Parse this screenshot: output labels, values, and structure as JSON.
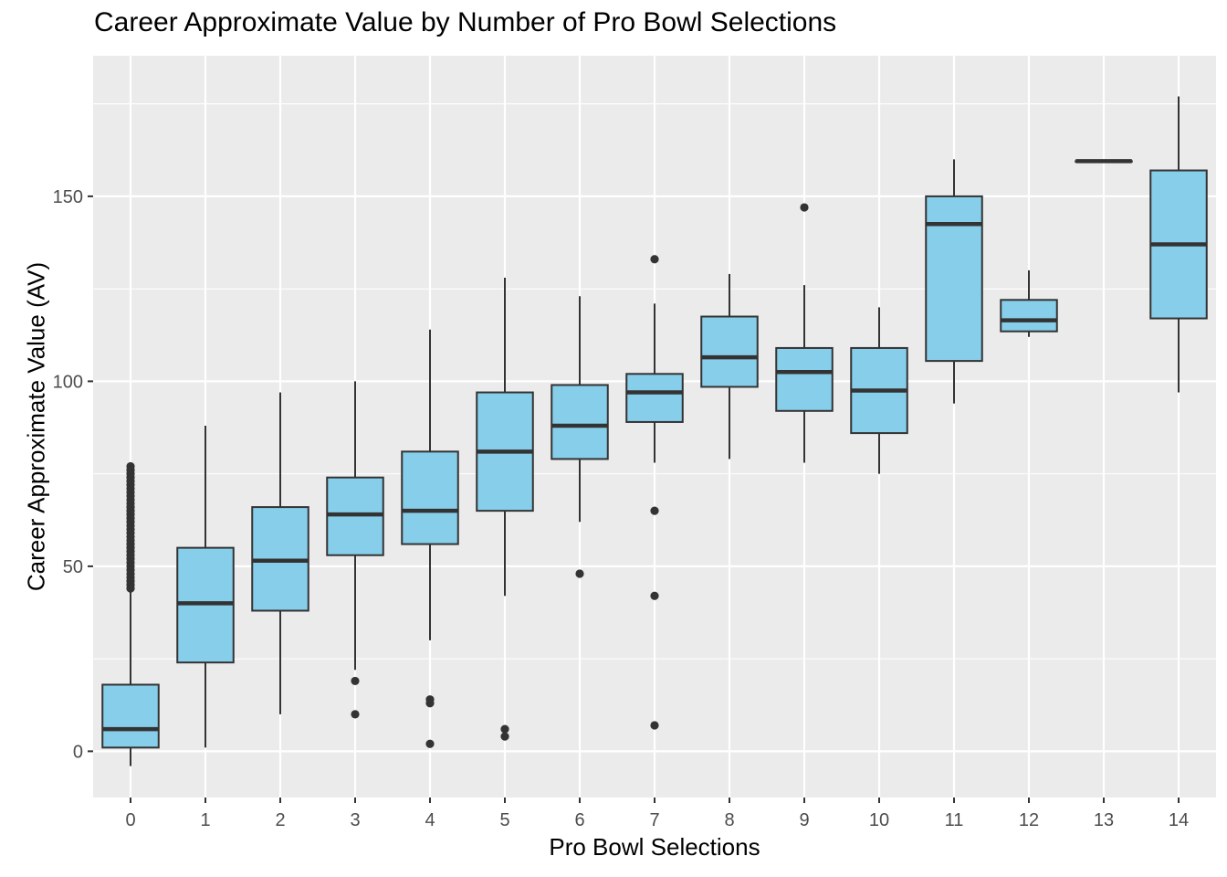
{
  "chart_data": {
    "type": "box",
    "title": "Career Approximate Value by Number of Pro Bowl Selections",
    "xlabel": "Pro Bowl Selections",
    "ylabel": "Career Approximate Value (AV)",
    "ylim": [
      -12.5,
      188
    ],
    "yticks": [
      0,
      50,
      100,
      150
    ],
    "categories": [
      "0",
      "1",
      "2",
      "3",
      "4",
      "5",
      "6",
      "7",
      "8",
      "9",
      "10",
      "11",
      "12",
      "13",
      "14"
    ],
    "boxes": [
      {
        "x": "0",
        "lower_whisker": -4,
        "q1": 1,
        "median": 6,
        "q3": 18,
        "upper_whisker": 44,
        "outliers": [
          44,
          45,
          46,
          47,
          48,
          49,
          50,
          51,
          52,
          53,
          54,
          55,
          56,
          57,
          58,
          59,
          60,
          61,
          62,
          63,
          64,
          65,
          66,
          67,
          68,
          69,
          70,
          71,
          72,
          73,
          74,
          75,
          76,
          77
        ]
      },
      {
        "x": "1",
        "lower_whisker": 1,
        "q1": 24,
        "median": 40,
        "q3": 55,
        "upper_whisker": 88,
        "outliers": []
      },
      {
        "x": "2",
        "lower_whisker": 10,
        "q1": 38,
        "median": 51.5,
        "q3": 66,
        "upper_whisker": 97,
        "outliers": []
      },
      {
        "x": "3",
        "lower_whisker": 22,
        "q1": 53,
        "median": 64,
        "q3": 74,
        "upper_whisker": 100,
        "outliers": [
          10,
          19
        ]
      },
      {
        "x": "4",
        "lower_whisker": 30,
        "q1": 56,
        "median": 65,
        "q3": 81,
        "upper_whisker": 114,
        "outliers": [
          2,
          13,
          14
        ]
      },
      {
        "x": "5",
        "lower_whisker": 42,
        "q1": 65,
        "median": 81,
        "q3": 97,
        "upper_whisker": 128,
        "outliers": [
          4,
          6
        ]
      },
      {
        "x": "6",
        "lower_whisker": 62,
        "q1": 79,
        "median": 88,
        "q3": 99,
        "upper_whisker": 123,
        "outliers": [
          48
        ]
      },
      {
        "x": "7",
        "lower_whisker": 78,
        "q1": 89,
        "median": 97,
        "q3": 102,
        "upper_whisker": 121,
        "outliers": [
          7,
          42,
          65,
          133
        ]
      },
      {
        "x": "8",
        "lower_whisker": 79,
        "q1": 98.5,
        "median": 106.5,
        "q3": 117.5,
        "upper_whisker": 129,
        "outliers": []
      },
      {
        "x": "9",
        "lower_whisker": 78,
        "q1": 92,
        "median": 102.5,
        "q3": 109,
        "upper_whisker": 126,
        "outliers": [
          147
        ]
      },
      {
        "x": "10",
        "lower_whisker": 75,
        "q1": 86,
        "median": 97.5,
        "q3": 109,
        "upper_whisker": 120,
        "outliers": []
      },
      {
        "x": "11",
        "lower_whisker": 94,
        "q1": 105.5,
        "median": 142.5,
        "q3": 150,
        "upper_whisker": 160,
        "outliers": []
      },
      {
        "x": "12",
        "lower_whisker": 112,
        "q1": 113.5,
        "median": 116.5,
        "q3": 122,
        "upper_whisker": 130,
        "outliers": []
      },
      {
        "x": "13",
        "lower_whisker": 159.5,
        "q1": 159.5,
        "median": 159.5,
        "q3": 159.5,
        "upper_whisker": 159.5,
        "outliers": []
      },
      {
        "x": "14",
        "lower_whisker": 97,
        "q1": 117,
        "median": 137,
        "q3": 157,
        "upper_whisker": 177,
        "outliers": []
      }
    ],
    "box_fill": "#87ceeb",
    "box_stroke": "#333333",
    "panel_background": "#ebebeb",
    "grid_color": "#ffffff",
    "grid": true,
    "legend": "none"
  }
}
